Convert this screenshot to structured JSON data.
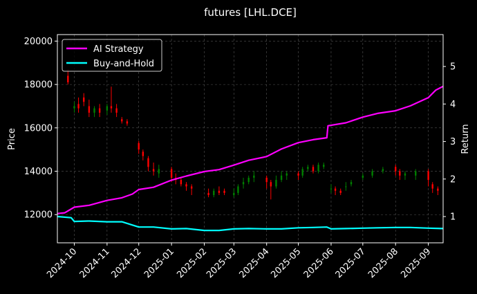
{
  "chart_data": {
    "type": "line",
    "title": "futures [LHL.DCE]",
    "left_axis": {
      "label": "Price",
      "range": [
        10700,
        20300
      ],
      "ticks": [
        12000,
        14000,
        16000,
        18000,
        20000
      ],
      "tick_labels": [
        "12000",
        "14000",
        "16000",
        "18000",
        "20000"
      ]
    },
    "right_axis": {
      "label": "Return",
      "range": [
        0.3,
        5.85
      ],
      "ticks": [
        1,
        2,
        3,
        4,
        5
      ],
      "tick_labels": [
        "1",
        "2",
        "3",
        "4",
        "5"
      ]
    },
    "x_axis": {
      "range": [
        "2024-09-15",
        "2025-09-15"
      ],
      "ticks": [
        "2024-10-01",
        "2024-11-01",
        "2024-12-01",
        "2025-01-01",
        "2025-02-01",
        "2025-03-01",
        "2025-04-01",
        "2025-05-01",
        "2025-06-01",
        "2025-07-01",
        "2025-08-01",
        "2025-09-01"
      ],
      "tick_labels": [
        "2024-10",
        "2024-11",
        "2024-12",
        "2025-01",
        "2025-02",
        "2025-03",
        "2025-04",
        "2025-05",
        "2025-06",
        "2025-07",
        "2025-08",
        "2025-09"
      ]
    },
    "grid": true,
    "legend_position": "top-left",
    "colors": {
      "background": "#000000",
      "up": "#008000",
      "down": "#ff0000",
      "ai_strategy": "#ff00ff",
      "buy_and_hold": "#00ffff",
      "grid": "#555555"
    },
    "series": [
      {
        "name": "AI Strategy",
        "axis": "right",
        "color": "#ff00ff",
        "x": [
          "2024-09-15",
          "2024-09-22",
          "2024-10-01",
          "2024-10-15",
          "2024-11-01",
          "2024-11-15",
          "2024-11-25",
          "2024-12-01",
          "2024-12-15",
          "2025-01-01",
          "2025-01-15",
          "2025-02-01",
          "2025-02-15",
          "2025-03-01",
          "2025-03-15",
          "2025-04-01",
          "2025-04-15",
          "2025-05-01",
          "2025-05-15",
          "2025-05-28",
          "2025-05-29",
          "2025-06-15",
          "2025-07-01",
          "2025-07-15",
          "2025-08-01",
          "2025-08-15",
          "2025-09-01",
          "2025-09-08",
          "2025-09-15"
        ],
        "values": [
          1.08,
          1.1,
          1.25,
          1.3,
          1.43,
          1.5,
          1.6,
          1.72,
          1.78,
          1.97,
          2.08,
          2.2,
          2.25,
          2.37,
          2.5,
          2.6,
          2.8,
          2.97,
          3.05,
          3.1,
          3.42,
          3.5,
          3.65,
          3.75,
          3.82,
          3.95,
          4.17,
          4.37,
          4.47
        ]
      },
      {
        "name": "Buy-and-Hold",
        "axis": "right",
        "color": "#00ffff",
        "x": [
          "2024-09-15",
          "2024-09-28",
          "2024-10-01",
          "2024-10-15",
          "2024-11-01",
          "2024-11-15",
          "2024-12-01",
          "2024-12-15",
          "2025-01-01",
          "2025-01-15",
          "2025-02-01",
          "2025-02-15",
          "2025-03-01",
          "2025-03-15",
          "2025-04-01",
          "2025-04-15",
          "2025-05-01",
          "2025-05-15",
          "2025-05-28",
          "2025-06-01",
          "2025-06-15",
          "2025-07-01",
          "2025-07-15",
          "2025-08-01",
          "2025-08-15",
          "2025-09-01",
          "2025-09-15"
        ],
        "values": [
          1.0,
          0.97,
          0.87,
          0.88,
          0.86,
          0.86,
          0.72,
          0.72,
          0.67,
          0.68,
          0.63,
          0.63,
          0.67,
          0.68,
          0.67,
          0.67,
          0.7,
          0.71,
          0.72,
          0.67,
          0.68,
          0.69,
          0.7,
          0.71,
          0.71,
          0.69,
          0.68
        ]
      },
      {
        "name": "price",
        "type": "candlestick",
        "axis": "left",
        "x": [
          "2024-09-25",
          "2024-10-01",
          "2024-10-05",
          "2024-10-10",
          "2024-10-15",
          "2024-10-20",
          "2024-10-25",
          "2024-11-01",
          "2024-11-05",
          "2024-11-10",
          "2024-11-15",
          "2024-11-20",
          "2024-12-01",
          "2024-12-05",
          "2024-12-10",
          "2024-12-15",
          "2024-12-20",
          "2025-01-01",
          "2025-01-05",
          "2025-01-10",
          "2025-01-15",
          "2025-01-20",
          "2025-02-05",
          "2025-02-10",
          "2025-02-15",
          "2025-02-20",
          "2025-03-01",
          "2025-03-05",
          "2025-03-10",
          "2025-03-15",
          "2025-03-20",
          "2025-04-01",
          "2025-04-05",
          "2025-04-10",
          "2025-04-15",
          "2025-04-20",
          "2025-05-01",
          "2025-05-05",
          "2025-05-10",
          "2025-05-15",
          "2025-05-20",
          "2025-05-25",
          "2025-06-01",
          "2025-06-05",
          "2025-06-10",
          "2025-06-15",
          "2025-06-20",
          "2025-07-01",
          "2025-07-10",
          "2025-07-20",
          "2025-08-01",
          "2025-08-05",
          "2025-08-10",
          "2025-08-20",
          "2025-09-01",
          "2025-09-05",
          "2025-09-10"
        ],
        "open": [
          18400,
          16900,
          17100,
          17400,
          17000,
          16700,
          16900,
          16800,
          17000,
          16900,
          16400,
          16300,
          15300,
          14900,
          14600,
          14100,
          13900,
          14100,
          13700,
          13600,
          13400,
          13300,
          13000,
          12900,
          13100,
          13100,
          12900,
          13000,
          13400,
          13500,
          13700,
          13700,
          13500,
          13300,
          13600,
          13800,
          13900,
          13800,
          14100,
          14200,
          14000,
          14200,
          13200,
          13200,
          13100,
          13300,
          13400,
          13700,
          13800,
          14000,
          14200,
          14000,
          13800,
          13800,
          14000,
          13400,
          13200
        ],
        "close": [
          18100,
          17000,
          16900,
          17200,
          16700,
          16900,
          16700,
          17000,
          16900,
          16700,
          16300,
          16200,
          15000,
          14700,
          14200,
          14000,
          14100,
          13700,
          13600,
          13400,
          13300,
          13200,
          12900,
          13100,
          13000,
          13000,
          13000,
          13300,
          13500,
          13700,
          13800,
          13500,
          13300,
          13600,
          13800,
          13900,
          13800,
          14100,
          14200,
          14000,
          14300,
          14300,
          13200,
          13100,
          13000,
          13300,
          13500,
          13800,
          14000,
          14100,
          14000,
          13800,
          13900,
          14000,
          13600,
          13200,
          13100
        ],
        "high": [
          18700,
          17200,
          17400,
          17600,
          17300,
          17000,
          17100,
          17100,
          17900,
          17100,
          16500,
          16400,
          15400,
          15000,
          14700,
          14400,
          14300,
          14200,
          13900,
          13700,
          13500,
          13400,
          13200,
          13200,
          13300,
          13200,
          13200,
          13400,
          13700,
          13800,
          14000,
          13800,
          13600,
          13800,
          14000,
          14000,
          14000,
          14200,
          14300,
          14300,
          14400,
          14400,
          13400,
          13300,
          13200,
          13500,
          13600,
          13900,
          14100,
          14200,
          14300,
          14100,
          14000,
          14100,
          14100,
          13500,
          13300
        ],
        "low": [
          18000,
          16700,
          16700,
          17000,
          16500,
          16500,
          16500,
          16600,
          16700,
          16500,
          16200,
          16100,
          14800,
          14500,
          14000,
          13800,
          13700,
          13500,
          13400,
          13300,
          13100,
          12900,
          12800,
          12800,
          12900,
          12900,
          12800,
          12900,
          13200,
          13400,
          13500,
          13200,
          12700,
          13200,
          13500,
          13600,
          13600,
          13700,
          14000,
          13900,
          13900,
          14100,
          13000,
          12900,
          12900,
          13100,
          13300,
          13600,
          13700,
          13900,
          13800,
          13600,
          13600,
          13600,
          13300,
          13000,
          12900
        ]
      }
    ]
  }
}
